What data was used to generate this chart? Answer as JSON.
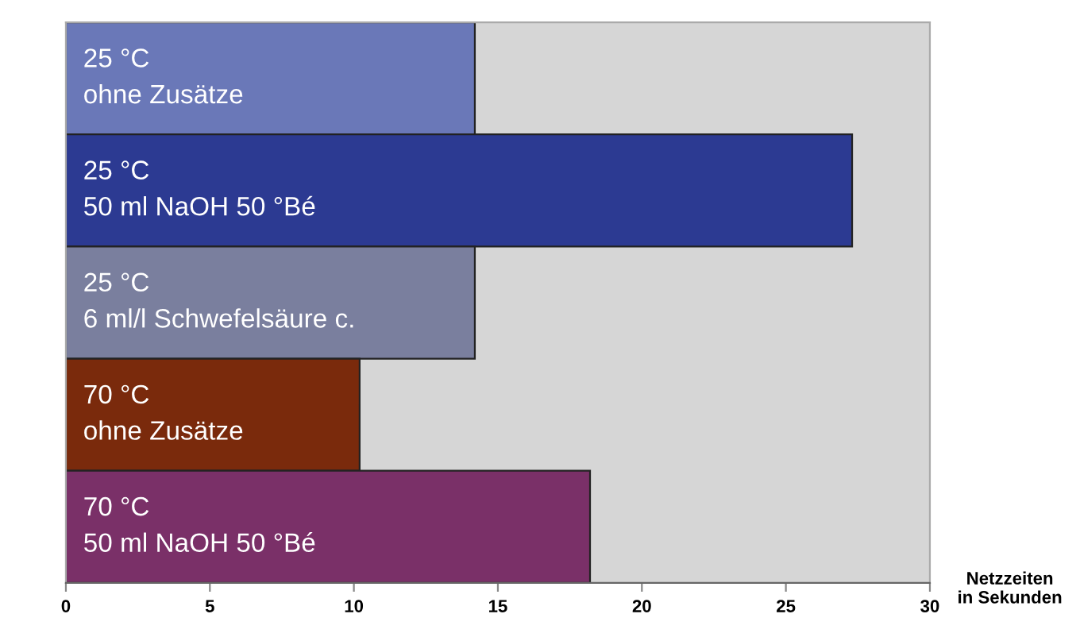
{
  "chart_data": {
    "type": "bar",
    "orientation": "horizontal",
    "xlabel": "Netzzeiten\nin Sekunden",
    "categories": [
      "25 °C\nohne Zusätze",
      "25 °C\n50 ml NaOH 50 °Bé",
      "25 °C\n6 ml/l Schwefelsäure c.",
      "70 °C\nohne Zusätze",
      "70 °C\n50 ml NaOH 50 °Bé"
    ],
    "values": [
      14.2,
      27.3,
      14.2,
      10.2,
      18.2
    ],
    "colors": [
      "#6a78b8",
      "#2c3a92",
      "#7a7f9e",
      "#7a2a0c",
      "#7a3068"
    ],
    "xlim": [
      0,
      30
    ],
    "xticks": [
      0,
      5,
      10,
      15,
      20,
      25,
      30
    ],
    "tick_labels": "x",
    "grid": false
  }
}
